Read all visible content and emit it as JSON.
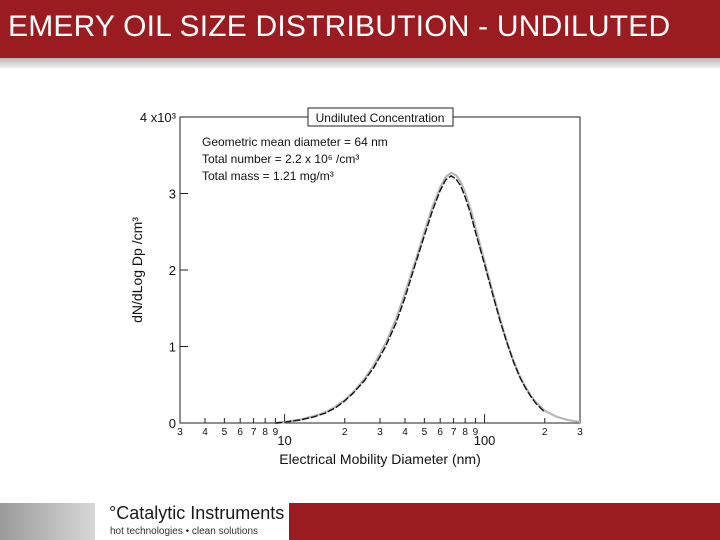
{
  "page": {
    "title": "EMERY OIL SIZE DISTRIBUTION - UNDILUTED",
    "colors": {
      "brand": "#9b1c20",
      "band": "#c8c8c8"
    }
  },
  "footer": {
    "brand": "°Catalytic Instruments",
    "tagline": "hot technologies • clean solutions"
  },
  "chart_data": {
    "type": "line",
    "xscale": "log",
    "xlim": [
      3,
      300
    ],
    "ylim": [
      0,
      4000
    ],
    "ylabel": "dN/dLog Dp /cm³",
    "xlabel": "Electrical Mobility Diameter (nm)",
    "legend_title": "Undiluted Concentration",
    "annotations": [
      "Geometric mean diameter = 64 nm",
      "Total number = 2.2 x 10⁶ /cm³",
      "Total mass = 1.21 mg/m³"
    ],
    "y_ticks": [
      {
        "value": 0,
        "label": "0"
      },
      {
        "value": 1000,
        "label": "1"
      },
      {
        "value": 2000,
        "label": "2"
      },
      {
        "value": 3000,
        "label": "3"
      },
      {
        "value": 4000,
        "label": "4 x10³"
      }
    ],
    "x_minor_ticks": [
      3,
      4,
      5,
      6,
      7,
      8,
      9,
      20,
      30,
      40,
      50,
      60,
      70,
      80,
      90,
      200,
      300
    ],
    "x_minor_labels": [
      "3",
      "4",
      "5",
      "6",
      "7",
      "8",
      "9",
      "2",
      "3",
      "4",
      "5",
      "6",
      "7",
      "8",
      "9",
      "2",
      "3"
    ],
    "x_major_ticks": [
      10,
      100
    ],
    "x_major_labels": [
      "10",
      "100"
    ],
    "grid": false,
    "series": [
      {
        "style": "measured",
        "color": "#111111",
        "x": [
          9,
          10,
          12,
          14,
          16,
          18,
          20,
          22,
          25,
          28,
          32,
          36,
          40,
          45,
          50,
          55,
          60,
          64,
          68,
          72,
          76,
          80,
          85,
          90,
          95,
          100,
          110,
          120,
          130,
          140,
          150,
          160,
          170,
          180,
          200
        ],
        "y": [
          0,
          10,
          40,
          80,
          130,
          200,
          290,
          390,
          550,
          730,
          1000,
          1300,
          1640,
          2070,
          2450,
          2780,
          3040,
          3180,
          3230,
          3190,
          3100,
          2950,
          2740,
          2500,
          2280,
          2070,
          1670,
          1320,
          1030,
          790,
          600,
          460,
          350,
          260,
          140
        ]
      },
      {
        "style": "fit",
        "color": "#b8b8b8",
        "x": [
          9,
          10,
          12,
          14,
          16,
          18,
          20,
          22,
          25,
          28,
          32,
          36,
          40,
          45,
          50,
          55,
          60,
          64,
          68,
          72,
          76,
          80,
          85,
          90,
          95,
          100,
          110,
          120,
          130,
          140,
          150,
          160,
          170,
          180,
          200,
          230,
          260,
          300
        ],
        "y": [
          0,
          12,
          45,
          90,
          140,
          215,
          300,
          400,
          570,
          760,
          1040,
          1350,
          1700,
          2110,
          2500,
          2830,
          3080,
          3220,
          3270,
          3240,
          3150,
          3010,
          2800,
          2560,
          2330,
          2110,
          1700,
          1340,
          1040,
          800,
          610,
          470,
          360,
          275,
          160,
          80,
          40,
          15
        ]
      }
    ]
  }
}
